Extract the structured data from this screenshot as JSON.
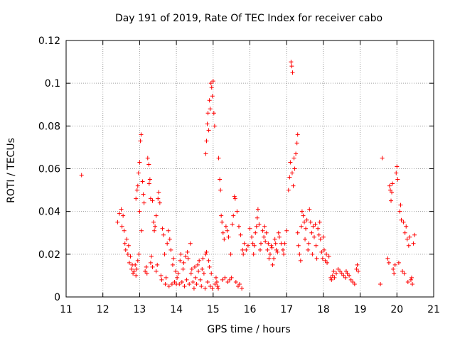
{
  "chart_data": {
    "type": "scatter",
    "title": "Day 191 of 2019, Rate Of TEC Index for receiver cabo",
    "xlabel": "GPS time / hours",
    "ylabel": "ROTI / TECUs",
    "xlim": [
      11,
      21
    ],
    "ylim": [
      0,
      0.12
    ],
    "xticks": [
      "11",
      "12",
      "13",
      "14",
      "15",
      "16",
      "17",
      "18",
      "19",
      "20",
      "21"
    ],
    "yticks": [
      "0",
      "0.02",
      "0.04",
      "0.06",
      "0.08",
      "0.1",
      "0.12"
    ],
    "grid": true,
    "marker": "+",
    "color": "#ff0000",
    "series": [
      {
        "name": "ROTI",
        "points": [
          [
            11.42,
            0.057
          ],
          [
            12.4,
            0.035
          ],
          [
            12.45,
            0.039
          ],
          [
            12.5,
            0.041
          ],
          [
            12.52,
            0.033
          ],
          [
            12.55,
            0.038
          ],
          [
            12.58,
            0.031
          ],
          [
            12.6,
            0.025
          ],
          [
            12.62,
            0.022
          ],
          [
            12.65,
            0.027
          ],
          [
            12.68,
            0.02
          ],
          [
            12.7,
            0.024
          ],
          [
            12.72,
            0.016
          ],
          [
            12.75,
            0.019
          ],
          [
            12.78,
            0.013
          ],
          [
            12.8,
            0.015
          ],
          [
            12.82,
            0.011
          ],
          [
            12.85,
            0.012
          ],
          [
            12.88,
            0.015
          ],
          [
            12.9,
            0.01
          ],
          [
            12.92,
            0.013
          ],
          [
            12.95,
            0.017
          ],
          [
            12.98,
            0.02
          ],
          [
            12.9,
            0.046
          ],
          [
            12.93,
            0.05
          ],
          [
            12.95,
            0.052
          ],
          [
            12.97,
            0.058
          ],
          [
            13.0,
            0.063
          ],
          [
            13.02,
            0.073
          ],
          [
            13.04,
            0.076
          ],
          [
            13.0,
            0.04
          ],
          [
            13.05,
            0.031
          ],
          [
            13.08,
            0.054
          ],
          [
            13.1,
            0.048
          ],
          [
            13.12,
            0.044
          ],
          [
            13.15,
            0.012
          ],
          [
            13.18,
            0.014
          ],
          [
            13.2,
            0.011
          ],
          [
            13.22,
            0.065
          ],
          [
            13.25,
            0.062
          ],
          [
            13.26,
            0.053
          ],
          [
            13.28,
            0.055
          ],
          [
            13.3,
            0.046
          ],
          [
            13.3,
            0.016
          ],
          [
            13.32,
            0.019
          ],
          [
            13.35,
            0.014
          ],
          [
            13.35,
            0.045
          ],
          [
            13.38,
            0.035
          ],
          [
            13.4,
            0.031
          ],
          [
            13.42,
            0.033
          ],
          [
            13.45,
            0.038
          ],
          [
            13.45,
            0.012
          ],
          [
            13.48,
            0.015
          ],
          [
            13.5,
            0.046
          ],
          [
            13.52,
            0.049
          ],
          [
            13.55,
            0.044
          ],
          [
            13.58,
            0.01
          ],
          [
            13.6,
            0.008
          ],
          [
            13.62,
            0.032
          ],
          [
            13.65,
            0.029
          ],
          [
            13.68,
            0.02
          ],
          [
            13.7,
            0.006
          ],
          [
            13.72,
            0.009
          ],
          [
            13.75,
            0.025
          ],
          [
            13.78,
            0.031
          ],
          [
            13.8,
            0.005
          ],
          [
            13.82,
            0.027
          ],
          [
            13.85,
            0.022
          ],
          [
            13.88,
            0.006
          ],
          [
            13.9,
            0.015
          ],
          [
            13.92,
            0.018
          ],
          [
            13.95,
            0.007
          ],
          [
            13.98,
            0.012
          ],
          [
            14.0,
            0.006
          ],
          [
            14.02,
            0.009
          ],
          [
            14.05,
            0.011
          ],
          [
            14.08,
            0.006
          ],
          [
            14.1,
            0.017
          ],
          [
            14.12,
            0.02
          ],
          [
            14.15,
            0.007
          ],
          [
            14.18,
            0.013
          ],
          [
            14.2,
            0.016
          ],
          [
            14.22,
            0.005
          ],
          [
            14.25,
            0.019
          ],
          [
            14.28,
            0.008
          ],
          [
            14.3,
            0.021
          ],
          [
            14.32,
            0.018
          ],
          [
            14.35,
            0.006
          ],
          [
            14.38,
            0.025
          ],
          [
            14.4,
            0.011
          ],
          [
            14.42,
            0.013
          ],
          [
            14.45,
            0.007
          ],
          [
            14.48,
            0.004
          ],
          [
            14.5,
            0.014
          ],
          [
            14.52,
            0.009
          ],
          [
            14.55,
            0.006
          ],
          [
            14.58,
            0.015
          ],
          [
            14.6,
            0.012
          ],
          [
            14.62,
            0.017
          ],
          [
            14.65,
            0.008
          ],
          [
            14.68,
            0.005
          ],
          [
            14.7,
            0.013
          ],
          [
            14.72,
            0.018
          ],
          [
            14.75,
            0.011
          ],
          [
            14.78,
            0.004
          ],
          [
            14.8,
            0.02
          ],
          [
            14.82,
            0.021
          ],
          [
            14.85,
            0.007
          ],
          [
            14.88,
            0.017
          ],
          [
            14.9,
            0.014
          ],
          [
            14.92,
            0.005
          ],
          [
            14.95,
            0.011
          ],
          [
            14.98,
            0.004
          ],
          [
            14.8,
            0.067
          ],
          [
            14.82,
            0.073
          ],
          [
            14.84,
            0.081
          ],
          [
            14.86,
            0.086
          ],
          [
            14.88,
            0.078
          ],
          [
            14.9,
            0.092
          ],
          [
            14.92,
            0.088
          ],
          [
            14.94,
            0.1
          ],
          [
            14.96,
            0.098
          ],
          [
            14.98,
            0.094
          ],
          [
            15.0,
            0.101
          ],
          [
            15.02,
            0.086
          ],
          [
            15.04,
            0.08
          ],
          [
            15.05,
            0.006
          ],
          [
            15.08,
            0.009
          ],
          [
            15.1,
            0.007
          ],
          [
            15.12,
            0.005
          ],
          [
            15.14,
            0.004
          ],
          [
            15.15,
            0.065
          ],
          [
            15.18,
            0.055
          ],
          [
            15.2,
            0.05
          ],
          [
            15.22,
            0.038
          ],
          [
            15.24,
            0.035
          ],
          [
            15.25,
            0.008
          ],
          [
            15.27,
            0.03
          ],
          [
            15.3,
            0.027
          ],
          [
            15.32,
            0.009
          ],
          [
            15.35,
            0.033
          ],
          [
            15.38,
            0.031
          ],
          [
            15.4,
            0.007
          ],
          [
            15.42,
            0.028
          ],
          [
            15.45,
            0.008
          ],
          [
            15.48,
            0.02
          ],
          [
            15.5,
            0.009
          ],
          [
            15.52,
            0.034
          ],
          [
            15.55,
            0.038
          ],
          [
            15.58,
            0.047
          ],
          [
            15.6,
            0.046
          ],
          [
            15.62,
            0.007
          ],
          [
            15.65,
            0.04
          ],
          [
            15.68,
            0.005
          ],
          [
            15.7,
            0.033
          ],
          [
            15.72,
            0.006
          ],
          [
            15.75,
            0.029
          ],
          [
            15.78,
            0.004
          ],
          [
            15.8,
            0.022
          ],
          [
            15.82,
            0.02
          ],
          [
            15.85,
            0.025
          ],
          [
            15.9,
            0.022
          ],
          [
            15.95,
            0.024
          ],
          [
            16.0,
            0.032
          ],
          [
            16.05,
            0.028
          ],
          [
            16.08,
            0.025
          ],
          [
            16.1,
            0.02
          ],
          [
            16.12,
            0.024
          ],
          [
            16.15,
            0.03
          ],
          [
            16.18,
            0.033
          ],
          [
            16.2,
            0.037
          ],
          [
            16.22,
            0.041
          ],
          [
            16.25,
            0.034
          ],
          [
            16.28,
            0.022
          ],
          [
            16.3,
            0.025
          ],
          [
            16.35,
            0.031
          ],
          [
            16.38,
            0.028
          ],
          [
            16.4,
            0.033
          ],
          [
            16.42,
            0.026
          ],
          [
            16.45,
            0.03
          ],
          [
            16.48,
            0.022
          ],
          [
            16.5,
            0.025
          ],
          [
            16.52,
            0.018
          ],
          [
            16.55,
            0.02
          ],
          [
            16.58,
            0.024
          ],
          [
            16.6,
            0.023
          ],
          [
            16.62,
            0.015
          ],
          [
            16.65,
            0.018
          ],
          [
            16.68,
            0.027
          ],
          [
            16.7,
            0.025
          ],
          [
            16.72,
            0.022
          ],
          [
            16.75,
            0.021
          ],
          [
            16.78,
            0.03
          ],
          [
            16.8,
            0.028
          ],
          [
            16.85,
            0.025
          ],
          [
            16.9,
            0.022
          ],
          [
            16.92,
            0.02
          ],
          [
            16.95,
            0.025
          ],
          [
            17.0,
            0.031
          ],
          [
            17.05,
            0.05
          ],
          [
            17.08,
            0.056
          ],
          [
            17.1,
            0.063
          ],
          [
            17.12,
            0.11
          ],
          [
            17.14,
            0.108
          ],
          [
            17.16,
            0.105
          ],
          [
            17.15,
            0.058
          ],
          [
            17.18,
            0.052
          ],
          [
            17.2,
            0.065
          ],
          [
            17.22,
            0.06
          ],
          [
            17.25,
            0.067
          ],
          [
            17.28,
            0.072
          ],
          [
            17.3,
            0.076
          ],
          [
            17.3,
            0.03
          ],
          [
            17.32,
            0.024
          ],
          [
            17.35,
            0.02
          ],
          [
            17.38,
            0.017
          ],
          [
            17.4,
            0.033
          ],
          [
            17.42,
            0.04
          ],
          [
            17.45,
            0.038
          ],
          [
            17.48,
            0.035
          ],
          [
            17.5,
            0.027
          ],
          [
            17.52,
            0.032
          ],
          [
            17.55,
            0.036
          ],
          [
            17.58,
            0.022
          ],
          [
            17.6,
            0.025
          ],
          [
            17.62,
            0.041
          ],
          [
            17.65,
            0.035
          ],
          [
            17.68,
            0.03
          ],
          [
            17.7,
            0.02
          ],
          [
            17.72,
            0.033
          ],
          [
            17.75,
            0.028
          ],
          [
            17.78,
            0.034
          ],
          [
            17.8,
            0.024
          ],
          [
            17.82,
            0.018
          ],
          [
            17.85,
            0.032
          ],
          [
            17.88,
            0.029
          ],
          [
            17.9,
            0.035
          ],
          [
            17.92,
            0.027
          ],
          [
            17.95,
            0.021
          ],
          [
            17.98,
            0.018
          ],
          [
            18.0,
            0.028
          ],
          [
            18.02,
            0.022
          ],
          [
            18.05,
            0.017
          ],
          [
            18.08,
            0.02
          ],
          [
            18.1,
            0.016
          ],
          [
            18.15,
            0.019
          ],
          [
            18.2,
            0.009
          ],
          [
            18.22,
            0.008
          ],
          [
            18.25,
            0.01
          ],
          [
            18.28,
            0.012
          ],
          [
            18.3,
            0.009
          ],
          [
            18.35,
            0.011
          ],
          [
            18.4,
            0.013
          ],
          [
            18.45,
            0.012
          ],
          [
            18.5,
            0.011
          ],
          [
            18.55,
            0.01
          ],
          [
            18.6,
            0.009
          ],
          [
            18.62,
            0.012
          ],
          [
            18.65,
            0.011
          ],
          [
            18.7,
            0.01
          ],
          [
            18.75,
            0.008
          ],
          [
            18.8,
            0.007
          ],
          [
            18.85,
            0.006
          ],
          [
            18.9,
            0.013
          ],
          [
            18.92,
            0.015
          ],
          [
            18.95,
            0.012
          ],
          [
            19.55,
            0.006
          ],
          [
            19.6,
            0.065
          ],
          [
            19.75,
            0.018
          ],
          [
            19.78,
            0.016
          ],
          [
            19.8,
            0.052
          ],
          [
            19.82,
            0.05
          ],
          [
            19.84,
            0.045
          ],
          [
            19.86,
            0.049
          ],
          [
            19.88,
            0.053
          ],
          [
            19.9,
            0.013
          ],
          [
            19.92,
            0.011
          ],
          [
            19.95,
            0.015
          ],
          [
            19.98,
            0.058
          ],
          [
            20.0,
            0.061
          ],
          [
            20.02,
            0.055
          ],
          [
            20.05,
            0.016
          ],
          [
            20.08,
            0.04
          ],
          [
            20.1,
            0.043
          ],
          [
            20.12,
            0.036
          ],
          [
            20.15,
            0.012
          ],
          [
            20.18,
            0.035
          ],
          [
            20.2,
            0.011
          ],
          [
            20.22,
            0.03
          ],
          [
            20.25,
            0.033
          ],
          [
            20.28,
            0.027
          ],
          [
            20.3,
            0.007
          ],
          [
            20.32,
            0.024
          ],
          [
            20.35,
            0.028
          ],
          [
            20.38,
            0.008
          ],
          [
            20.4,
            0.009
          ],
          [
            20.42,
            0.006
          ],
          [
            20.45,
            0.025
          ],
          [
            20.48,
            0.029
          ]
        ]
      }
    ]
  }
}
